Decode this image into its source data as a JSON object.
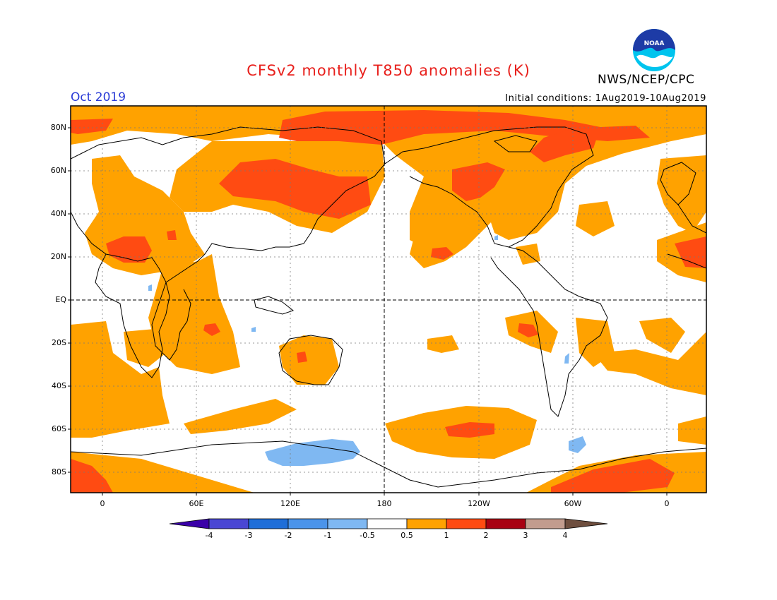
{
  "header": {
    "title": "CFSv2 monthly T850 anomalies (K)",
    "agency": "NWS/NCEP/CPC",
    "month": "Oct 2019",
    "initial_conditions": "Initial conditions: 1Aug2019-10Aug2019",
    "logo_text": "NOAA"
  },
  "axes": {
    "lat_labels": [
      "80N",
      "60N",
      "40N",
      "20N",
      "EQ",
      "20S",
      "40S",
      "60S",
      "80S"
    ],
    "lon_labels": [
      "0",
      "60E",
      "120E",
      "180",
      "120W",
      "60W",
      "0"
    ]
  },
  "colorbar": {
    "ticks": [
      "-4",
      "-3",
      "-2",
      "-1",
      "-0.5",
      "0.5",
      "1",
      "2",
      "3",
      "4"
    ],
    "colors": [
      "#3a00a8",
      "#4a47d3",
      "#1f6ed8",
      "#4b94ea",
      "#7fb8f2",
      "#ffffff",
      "#ffa200",
      "#ff4b12",
      "#a80012",
      "#c29c8e",
      "#6e4e3e"
    ]
  },
  "colors": {
    "warm_1": "#ffa200",
    "warm_2": "#ff4b12",
    "cool_1": "#7fb8f2"
  }
}
